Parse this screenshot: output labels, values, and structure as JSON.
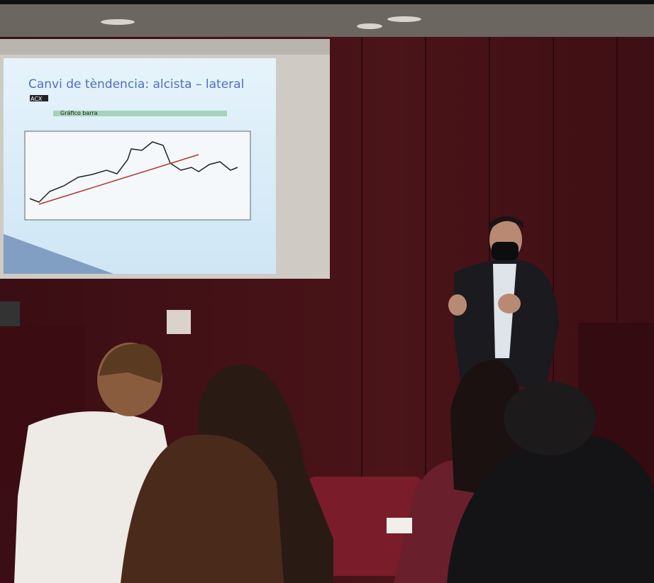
{
  "slide": {
    "title": "Canvi de tèndencia: alcista – lateral",
    "ticker": "ACX",
    "chart_caption": "Gráfico barra"
  }
}
